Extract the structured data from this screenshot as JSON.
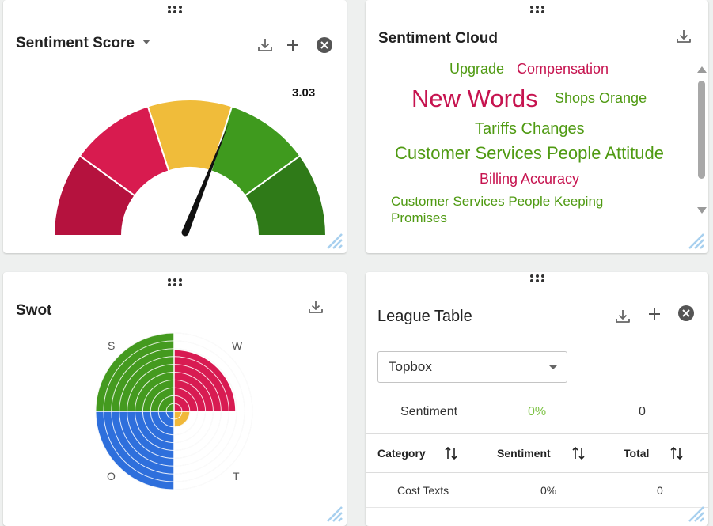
{
  "sentiment_score": {
    "title": "Sentiment Score",
    "value_label": "3.03",
    "value": 3.03,
    "gauge": {
      "min": 0,
      "max": 5,
      "segments": [
        {
          "color": "#b5123e"
        },
        {
          "color": "#d81b4f"
        },
        {
          "color": "#f0bc3a"
        },
        {
          "color": "#3f9a1e"
        },
        {
          "color": "#2f7a18"
        }
      ]
    },
    "icons": [
      "download-icon",
      "plus-icon",
      "close-circle-icon"
    ]
  },
  "sentiment_cloud": {
    "title": "Sentiment Cloud",
    "words": [
      {
        "text": "Upgrade",
        "color": "#4f9a12",
        "size": 18
      },
      {
        "text": "Compensation",
        "color": "#c6134f",
        "size": 18
      },
      {
        "text": "New Words",
        "color": "#c6134f",
        "size": 31
      },
      {
        "text": "Shops Orange",
        "color": "#4f9a12",
        "size": 18
      },
      {
        "text": "Tariffs Changes",
        "color": "#4f9a12",
        "size": 20
      },
      {
        "text": "Customer Services People Attitude",
        "color": "#4f9a12",
        "size": 22
      },
      {
        "text": "Billing Accuracy",
        "color": "#c6134f",
        "size": 18
      },
      {
        "text": "Customer Services People Keeping",
        "color": "#4f9a12",
        "size": 17
      },
      {
        "text": "Promises",
        "color": "#4f9a12",
        "size": 17
      }
    ]
  },
  "swot": {
    "title": "Swot",
    "labels": {
      "s": "S",
      "w": "W",
      "o": "O",
      "t": "T"
    },
    "quadrants": [
      {
        "name": "S",
        "color": "#449a1f",
        "level": 1.0
      },
      {
        "name": "W",
        "color": "#d81b52",
        "level": 0.78
      },
      {
        "name": "O",
        "color": "#2e6fdc",
        "level": 1.0
      },
      {
        "name": "T",
        "color": "#f0b83a",
        "level": 0.2
      }
    ],
    "rings": 10
  },
  "league_table": {
    "title": "League Table",
    "select_value": "Topbox",
    "summary": {
      "label": "Sentiment",
      "percent": "0%",
      "count": "0",
      "percent_color": "#7cc243"
    },
    "columns": [
      "Category",
      "Sentiment",
      "Total"
    ],
    "rows": [
      {
        "category": "Cost Texts",
        "sentiment": "0%",
        "total": "0"
      }
    ]
  }
}
